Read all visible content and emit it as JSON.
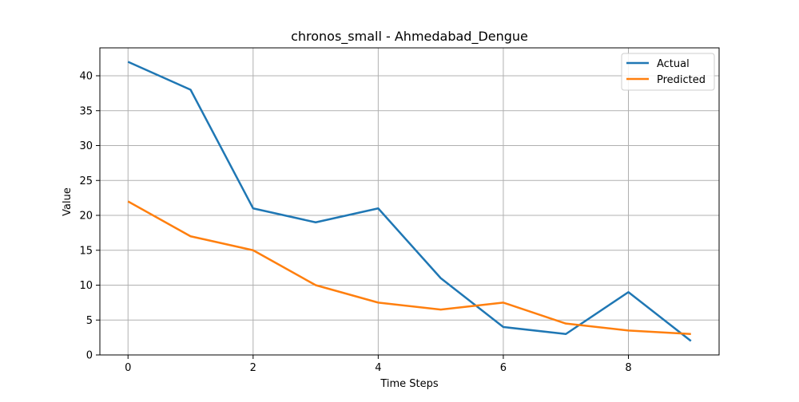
{
  "chart_data": {
    "type": "line",
    "title": "chronos_small - Ahmedabad_Dengue",
    "xlabel": "Time Steps",
    "ylabel": "Value",
    "x": [
      0,
      1,
      2,
      3,
      4,
      5,
      6,
      7,
      8,
      9
    ],
    "xlim": [
      -0.45,
      9.45
    ],
    "ylim": [
      0,
      44
    ],
    "xticks": [
      0,
      2,
      4,
      6,
      8
    ],
    "yticks": [
      0,
      5,
      10,
      15,
      20,
      25,
      30,
      35,
      40
    ],
    "grid": true,
    "legend_position": "top-right",
    "series": [
      {
        "name": "Actual",
        "color": "#1f77b4",
        "values": [
          42,
          38,
          21,
          19,
          21,
          11,
          4,
          3,
          9,
          2
        ]
      },
      {
        "name": "Predicted",
        "color": "#ff7f0e",
        "values": [
          22,
          17,
          15,
          10,
          7.5,
          6.5,
          7.5,
          4.5,
          3.5,
          3
        ]
      }
    ]
  }
}
